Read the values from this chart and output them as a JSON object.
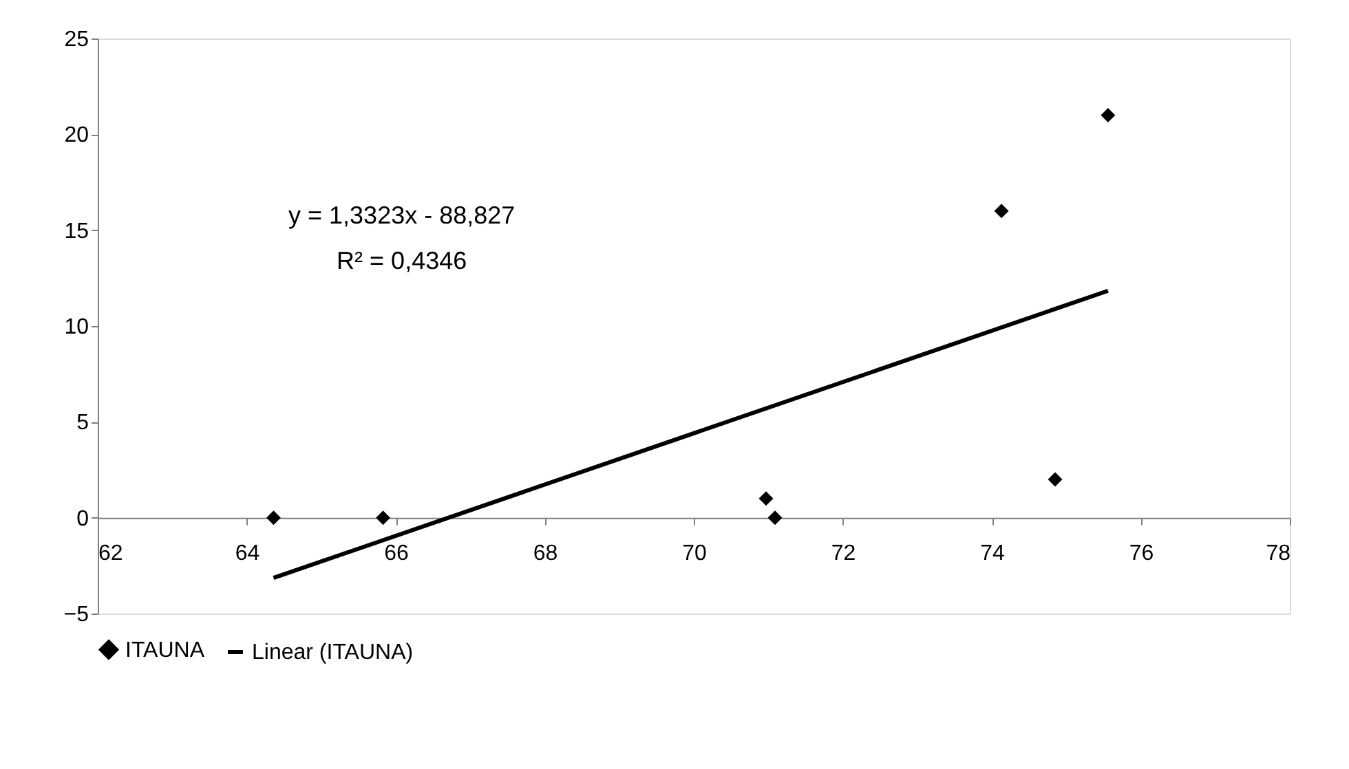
{
  "chart_data": {
    "type": "scatter",
    "series": [
      {
        "name": "ITAUNA",
        "color": "#000000",
        "marker": "diamond",
        "x": [
          64.36,
          65.83,
          70.97,
          71.09,
          74.13,
          74.85,
          75.56
        ],
        "values": [
          0,
          0,
          1,
          0,
          16,
          2,
          21
        ]
      },
      {
        "name": "Linear (ITAUNA)",
        "type": "line",
        "color": "#000000",
        "line_style": "solid",
        "x": [
          64.36,
          75.56
        ],
        "values": [
          -3.14,
          11.84
        ]
      }
    ],
    "xlim": [
      62,
      78
    ],
    "xticks": [
      62,
      64,
      66,
      68,
      70,
      72,
      74,
      76,
      78
    ],
    "ylim": [
      -5,
      25
    ],
    "yticks": [
      -5,
      0,
      5,
      10,
      15,
      20,
      25
    ],
    "annotations": [
      "y = 1,3323x - 88,827",
      "R² = 0,4346"
    ],
    "grid": false,
    "legend": "bottom"
  }
}
